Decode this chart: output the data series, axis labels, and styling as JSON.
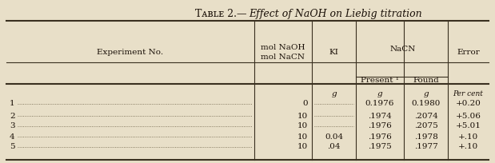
{
  "bg_color": "#e8dfc8",
  "line_color": "#3a3020",
  "text_color": "#1a1008",
  "title_prefix": "Tᴀʙʟᴇ 2.—",
  "title_italic": "Effect of NaOH on Liebig titration",
  "col_headers": [
    "Experiment No.",
    "mol NaOH\nmol NaCN",
    "KI",
    "NaCN",
    "Present ¹",
    "Found",
    "Error"
  ],
  "units": [
    "g",
    "g",
    "g",
    "Per cent"
  ],
  "rows": [
    {
      "exp": "1",
      "mol": "0",
      "ki": "",
      "present": "0.1976",
      "found": "0.1980",
      "error": "+0.20"
    },
    {
      "exp": "2",
      "mol": "10",
      "ki": "",
      "present": ".1974",
      "found": ".2074",
      "error": "+5.06"
    },
    {
      "exp": "3",
      "mol": "10",
      "ki": "",
      "present": ".1976",
      "found": ".2075",
      "error": "+5.01"
    },
    {
      "exp": "4",
      "mol": "10",
      "ki": "0.04",
      "present": ".1976",
      "found": ".1978",
      "error": "+.10"
    },
    {
      "exp": "5",
      "mol": "10",
      "ki": ".04",
      "present": ".1975",
      "found": ".1977",
      "error": "+.10"
    }
  ]
}
